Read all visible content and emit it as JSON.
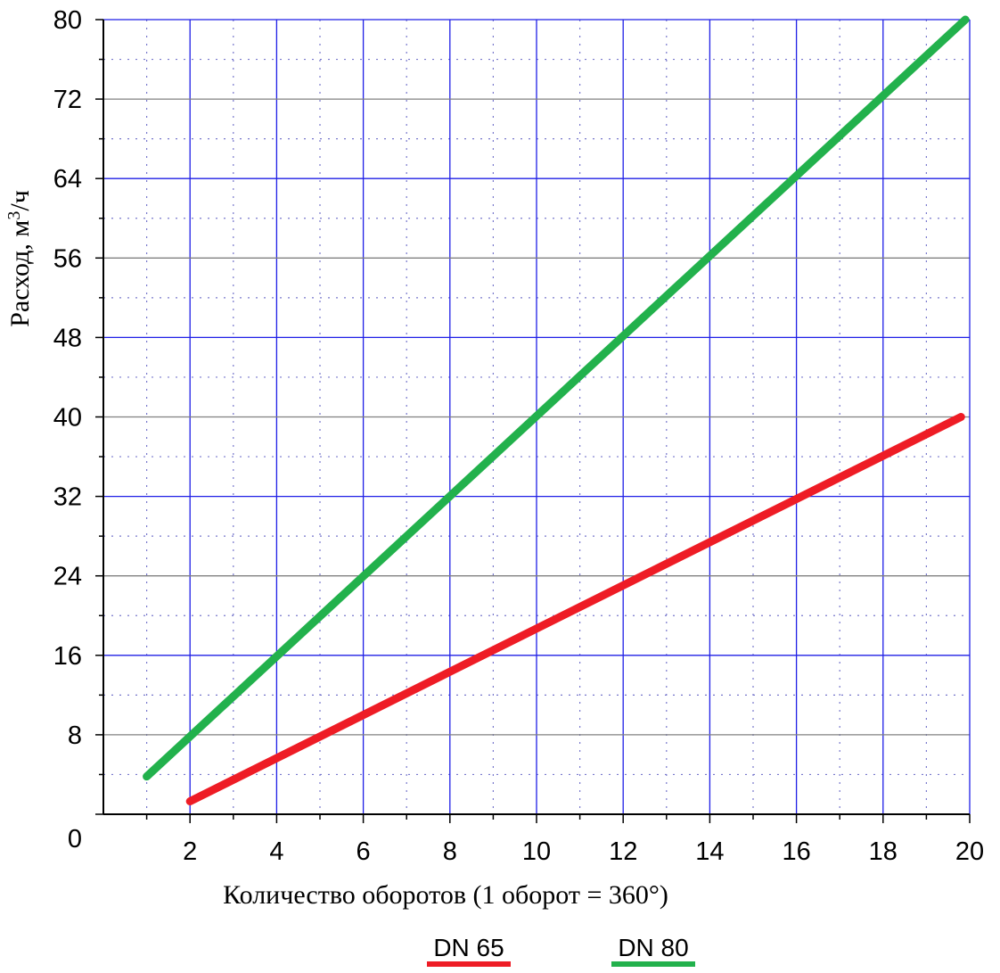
{
  "chart_data": {
    "type": "line",
    "xlabel": "Количество оборотов (1 оборот = 360°)",
    "ylabel": "Расход, м",
    "ylabel_sup": "3",
    "ylabel_tail": "/ч",
    "xlim": [
      0,
      20
    ],
    "ylim": [
      0,
      80
    ],
    "x_ticks": [
      2,
      4,
      6,
      8,
      10,
      12,
      14,
      16,
      18,
      20
    ],
    "y_ticks": [
      0,
      8,
      16,
      24,
      32,
      40,
      48,
      56,
      64,
      72,
      80
    ],
    "grid": true,
    "legend_position": "bottom-center",
    "series": [
      {
        "name": "DN 65",
        "color": "#ee1c25",
        "points": [
          [
            2,
            1.3
          ],
          [
            19.8,
            40
          ]
        ]
      },
      {
        "name": "DN 80",
        "color": "#22b14c",
        "points": [
          [
            1,
            3.8
          ],
          [
            19.9,
            80
          ]
        ]
      }
    ]
  },
  "colors": {
    "major_grid_x": "#1f1fe6",
    "major_grid_y_blue": "#1f1fe6",
    "major_grid_y_gray": "#808080",
    "minor_grid": "#7777cc",
    "axis": "#000000"
  }
}
